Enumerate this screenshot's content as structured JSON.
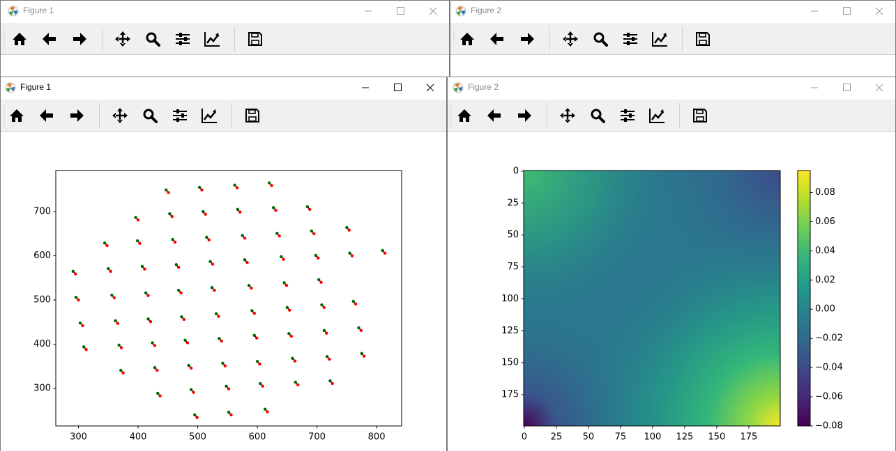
{
  "windows": [
    {
      "title": "Figure 1"
    },
    {
      "title": "Figure 2"
    },
    {
      "title": "Figure 1"
    },
    {
      "title": "Figure 2"
    }
  ],
  "chart_data": [
    {
      "type": "scatter",
      "xlim": [
        262,
        842
      ],
      "ylim": [
        215,
        793
      ],
      "xticks": [
        300,
        400,
        500,
        600,
        700,
        800
      ],
      "yticks": [
        300,
        400,
        500,
        600,
        700
      ],
      "pair_line_color": "#000000",
      "series": [
        {
          "color": "#006400",
          "x": [
            447,
            503,
            562,
            620,
            396,
            453,
            509,
            567,
            627,
            684,
            750,
            691,
            633,
            575,
            515,
            458,
            399,
            344,
            291,
            350,
            407,
            464,
            521,
            579,
            640,
            698,
            755,
            810,
            296,
            356,
            413,
            468,
            524,
            586,
            645,
            703,
            761,
            708,
            650,
            591,
            531,
            473,
            417,
            362,
            303,
            309,
            368,
            424,
            479,
            536,
            595,
            653,
            712,
            770,
            775,
            717,
            659,
            600,
            542,
            485,
            428,
            371,
            433,
            489,
            548,
            605,
            664,
            722,
            495,
            552,
            613
          ],
          "values": [
            749,
            755,
            760,
            765,
            687,
            695,
            700,
            705,
            709,
            711,
            664,
            656,
            651,
            646,
            642,
            637,
            634,
            629,
            565,
            571,
            576,
            580,
            587,
            591,
            598,
            601,
            606,
            612,
            506,
            511,
            516,
            522,
            528,
            533,
            539,
            546,
            497,
            489,
            483,
            476,
            469,
            462,
            457,
            453,
            448,
            394,
            398,
            403,
            409,
            413,
            420,
            424,
            431,
            437,
            379,
            372,
            368,
            361,
            357,
            352,
            347,
            341,
            289,
            297,
            305,
            311,
            314,
            317,
            240,
            246,
            253
          ]
        },
        {
          "color": "#ff0000",
          "x": [
            451,
            507,
            566,
            624,
            400,
            457,
            513,
            571,
            631,
            688,
            754,
            695,
            637,
            579,
            519,
            462,
            403,
            348,
            295,
            354,
            411,
            468,
            525,
            583,
            644,
            702,
            759,
            814,
            300,
            360,
            417,
            472,
            528,
            590,
            649,
            707,
            765,
            712,
            654,
            595,
            535,
            477,
            421,
            366,
            307,
            313,
            372,
            428,
            483,
            540,
            599,
            657,
            716,
            774,
            779,
            721,
            663,
            604,
            546,
            489,
            432,
            375,
            437,
            493,
            552,
            609,
            668,
            726,
            499,
            556,
            617
          ],
          "values": [
            743,
            749,
            754,
            759,
            681,
            689,
            694,
            699,
            703,
            705,
            658,
            650,
            645,
            640,
            636,
            631,
            628,
            623,
            559,
            565,
            570,
            574,
            581,
            585,
            592,
            595,
            600,
            606,
            500,
            505,
            510,
            516,
            522,
            527,
            533,
            540,
            491,
            483,
            477,
            470,
            463,
            456,
            451,
            447,
            442,
            388,
            392,
            397,
            403,
            407,
            414,
            418,
            425,
            431,
            373,
            366,
            362,
            355,
            351,
            346,
            341,
            335,
            283,
            291,
            299,
            305,
            308,
            311,
            234,
            240,
            247
          ]
        }
      ]
    },
    {
      "type": "heatmap",
      "xlim": [
        -0.5,
        199.5
      ],
      "ylim": [
        199.5,
        -0.5
      ],
      "xticks": [
        0,
        25,
        50,
        75,
        100,
        125,
        150,
        175
      ],
      "yticks": [
        0,
        25,
        50,
        75,
        100,
        125,
        150,
        175
      ],
      "colormap": "viridis",
      "clim": [
        -0.08,
        0.095
      ],
      "cticks": [
        {
          "value": -0.08,
          "label": "−0.08"
        },
        {
          "value": -0.06,
          "label": "−0.06"
        },
        {
          "value": -0.04,
          "label": "−0.04"
        },
        {
          "value": -0.02,
          "label": "−0.02"
        },
        {
          "value": 0,
          "label": "0.00"
        },
        0.02,
        0.04,
        0.06,
        0.08
      ]
    }
  ]
}
